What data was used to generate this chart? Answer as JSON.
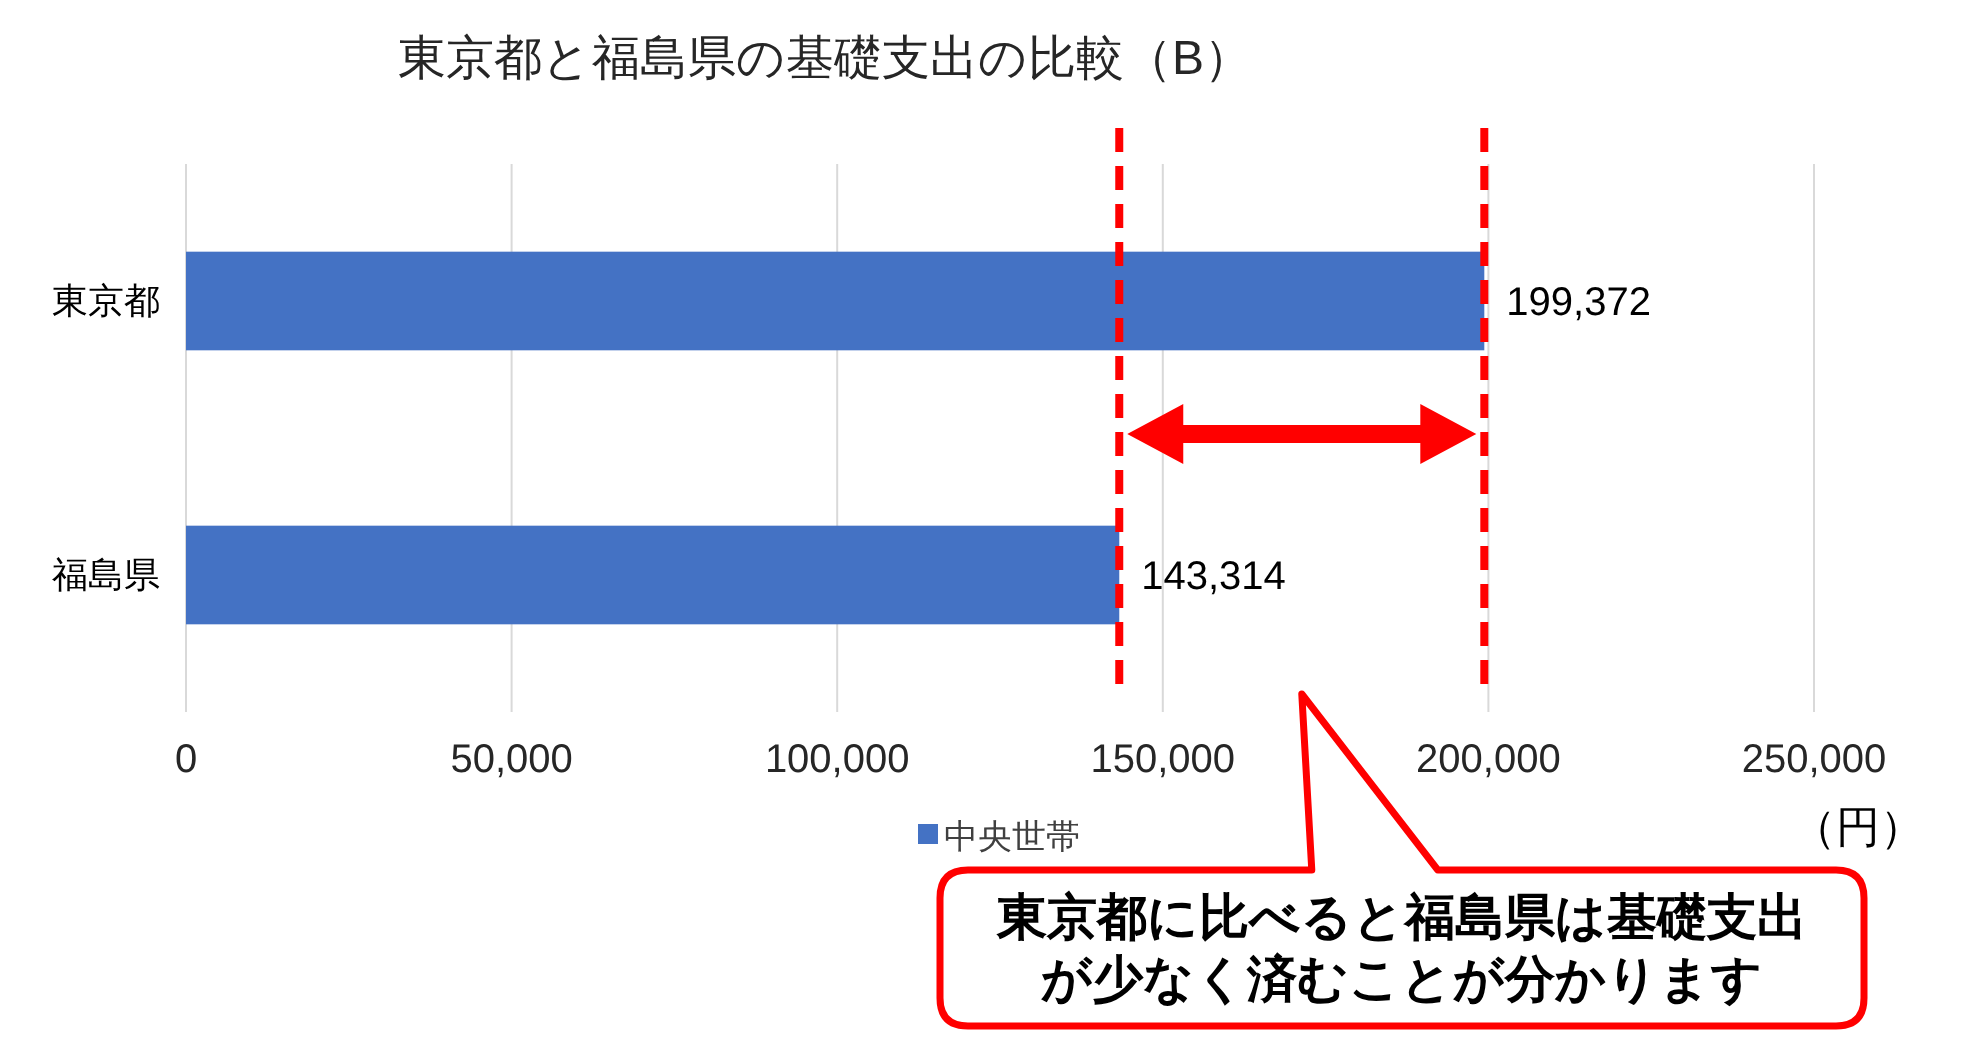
{
  "chart_data": {
    "type": "bar",
    "orientation": "horizontal",
    "title": "東京都と福島県の基礎支出の比較（B）",
    "xlabel": "（円）",
    "categories": [
      "東京都",
      "福島県"
    ],
    "series": [
      {
        "name": "中央世帯",
        "color": "#4472c4",
        "values": [
          199372,
          143314
        ],
        "value_labels": [
          "199,372",
          "143,314"
        ]
      }
    ],
    "xlim": [
      0,
      250000
    ],
    "xticks": [
      0,
      {
        "value": 50000,
        "label": "50,000"
      },
      {
        "value": 100000,
        "label": "100,000"
      },
      {
        "value": 150000,
        "label": "150,000"
      },
      {
        "value": 200000,
        "label": "200,000"
      },
      {
        "value": 250000,
        "label": "250,000"
      }
    ],
    "grid": "x",
    "legend": "bottom",
    "ref_lines": [
      {
        "axis": "x",
        "value": 143314,
        "color": "#ff0000",
        "line_style": "dashed"
      },
      {
        "axis": "x",
        "value": 199372,
        "color": "#ff0000",
        "line_style": "dashed"
      }
    ],
    "annotations": [
      "東京都に比べると福島県は基礎支出が少なく済むことが分かります"
    ]
  }
}
